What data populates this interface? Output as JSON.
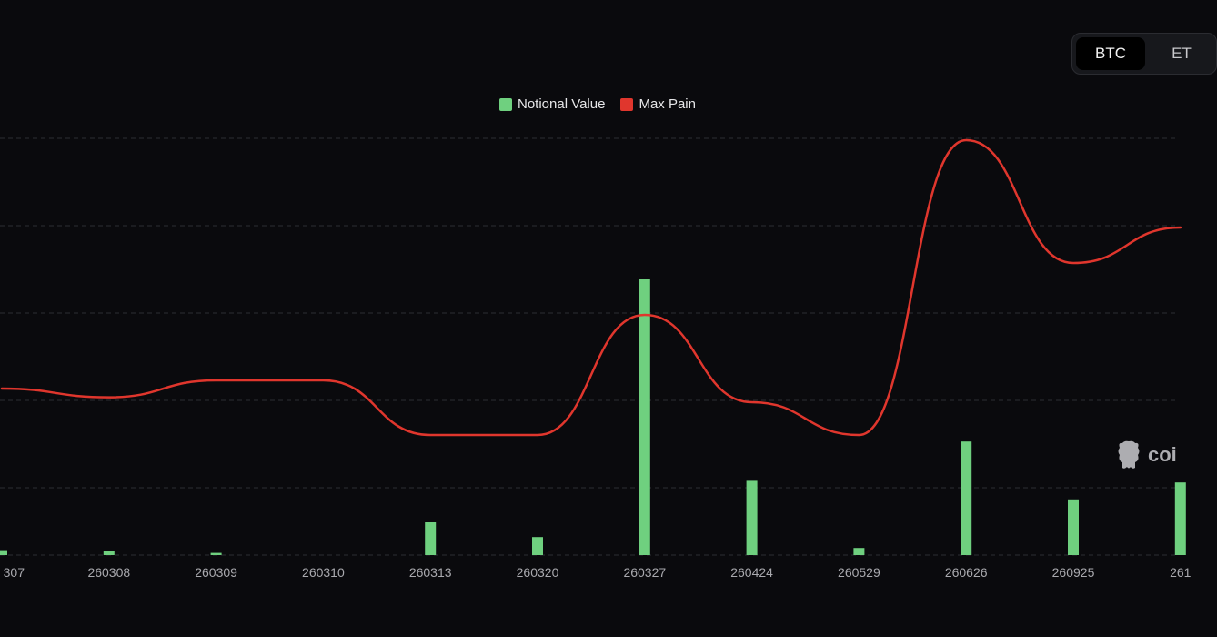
{
  "coin_switch": {
    "options": [
      "BTC",
      "ET"
    ],
    "selected": "BTC"
  },
  "legend": [
    {
      "label": "Notional Value",
      "color": "#6fd07f"
    },
    {
      "label": "Max Pain",
      "color": "#e0362d"
    }
  ],
  "watermark": {
    "text": "coi",
    "icon": "coinglass-logo-icon"
  },
  "chart_data": {
    "type": "bar",
    "categories": [
      "307",
      "260308",
      "260309",
      "260310",
      "260313",
      "260320",
      "260327",
      "260424",
      "260529",
      "260626",
      "260925",
      "261"
    ],
    "grid": true,
    "y_axis_labels_visible": false,
    "series": [
      {
        "name": "Notional Value",
        "type": "bar",
        "color": "#6fd07f",
        "values": [
          0.9,
          0.7,
          0.4,
          0,
          6.0,
          3.3,
          50.5,
          13.6,
          1.3,
          20.8,
          10.2,
          13.3
        ]
      },
      {
        "name": "Max Pain",
        "type": "line",
        "color": "#e0362d",
        "smooth": true,
        "values": [
          30.5,
          28.9,
          32.0,
          32.0,
          22.0,
          22.0,
          44.0,
          28.0,
          22.0,
          76.0,
          53.5,
          60.0
        ]
      }
    ],
    "ylim": [
      0,
      80
    ]
  }
}
